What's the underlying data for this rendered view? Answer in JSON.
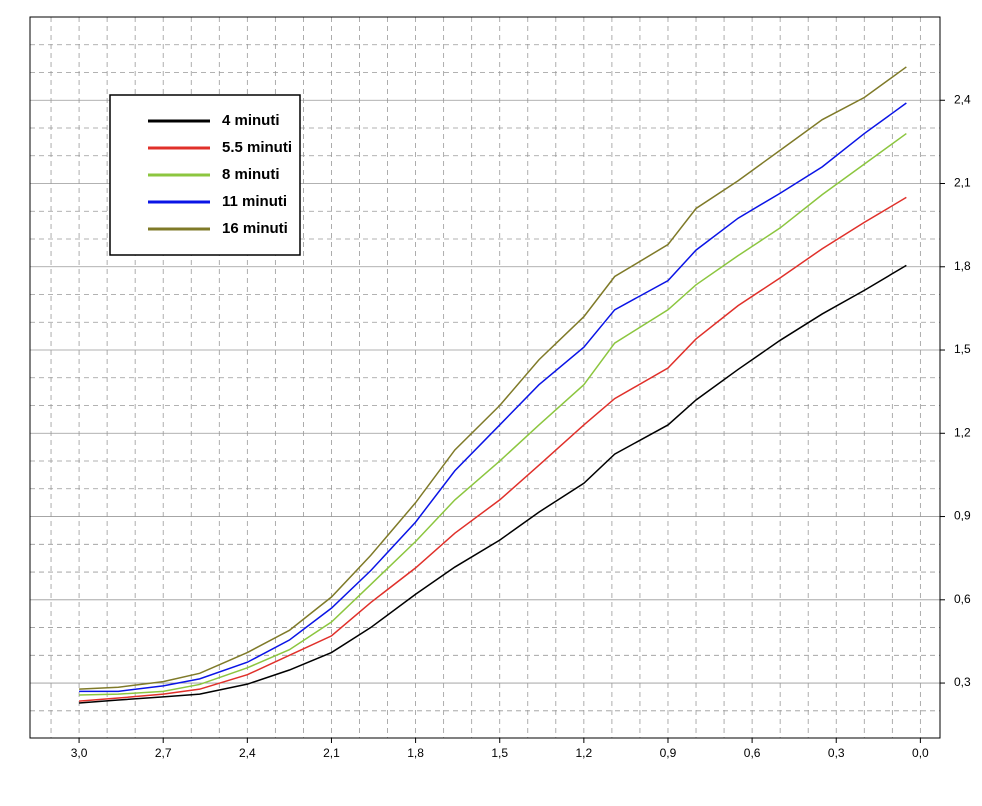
{
  "chart_data": {
    "type": "line",
    "x": [
      3.0,
      2.86,
      2.7,
      2.57,
      2.4,
      2.25,
      2.1,
      1.96,
      1.8,
      1.66,
      1.5,
      1.36,
      1.2,
      1.09,
      0.9,
      0.8,
      0.65,
      0.5,
      0.35,
      0.2,
      0.05
    ],
    "series": [
      {
        "name": "4 minuti",
        "color": "#000000",
        "values": [
          0.228,
          0.239,
          0.25,
          0.26,
          0.296,
          0.347,
          0.41,
          0.5,
          0.62,
          0.718,
          0.815,
          0.916,
          1.02,
          1.125,
          1.23,
          1.32,
          1.43,
          1.535,
          1.63,
          1.715,
          1.805
        ]
      },
      {
        "name": "5.5 minuti",
        "color": "#e0302a",
        "values": [
          0.235,
          0.246,
          0.26,
          0.278,
          0.33,
          0.4,
          0.47,
          0.59,
          0.715,
          0.84,
          0.96,
          1.085,
          1.23,
          1.325,
          1.435,
          1.54,
          1.66,
          1.76,
          1.865,
          1.96,
          2.05
        ]
      },
      {
        "name": "8 minuti",
        "color": "#8cc63f",
        "values": [
          0.257,
          0.26,
          0.27,
          0.295,
          0.355,
          0.42,
          0.52,
          0.655,
          0.81,
          0.96,
          1.1,
          1.23,
          1.375,
          1.525,
          1.645,
          1.735,
          1.84,
          1.94,
          2.06,
          2.17,
          2.28
        ]
      },
      {
        "name": "11 minuti",
        "color": "#0a14e6",
        "values": [
          0.27,
          0.27,
          0.29,
          0.315,
          0.375,
          0.455,
          0.57,
          0.705,
          0.88,
          1.065,
          1.23,
          1.375,
          1.51,
          1.645,
          1.75,
          1.86,
          1.975,
          2.065,
          2.16,
          2.28,
          2.39
        ]
      },
      {
        "name": "16 minuti",
        "color": "#7f7a28",
        "values": [
          0.278,
          0.285,
          0.305,
          0.335,
          0.41,
          0.49,
          0.61,
          0.76,
          0.95,
          1.14,
          1.3,
          1.465,
          1.62,
          1.765,
          1.88,
          2.01,
          2.11,
          2.22,
          2.33,
          2.41,
          2.52
        ]
      }
    ],
    "xlim": [
      3.175,
      -0.07
    ],
    "ylim": [
      0.102,
      2.7
    ],
    "xticks": [
      {
        "value": 3.0,
        "label": "3,0"
      },
      {
        "value": 2.7,
        "label": "2,7"
      },
      {
        "value": 2.4,
        "label": "2,4"
      },
      {
        "value": 2.1,
        "label": "2,1"
      },
      {
        "value": 1.8,
        "label": "1,8"
      },
      {
        "value": 1.5,
        "label": "1,5"
      },
      {
        "value": 1.2,
        "label": "1,2"
      },
      {
        "value": 0.9,
        "label": "0,9"
      },
      {
        "value": 0.6,
        "label": "0,6"
      },
      {
        "value": 0.3,
        "label": "0,3"
      },
      {
        "value": 0.0,
        "label": "0,0"
      }
    ],
    "yticks": [
      {
        "value": 0.3,
        "label": "0,3"
      },
      {
        "value": 0.6,
        "label": "0,6"
      },
      {
        "value": 0.9,
        "label": "0,9"
      },
      {
        "value": 1.2,
        "label": "1,2"
      },
      {
        "value": 1.5,
        "label": "1,5"
      },
      {
        "value": 1.8,
        "label": "1,8"
      },
      {
        "value": 2.1,
        "label": "2,1"
      },
      {
        "value": 2.4,
        "label": "2,4"
      }
    ],
    "grid": true,
    "y_axis_side": "right",
    "legend": "upper-left"
  }
}
